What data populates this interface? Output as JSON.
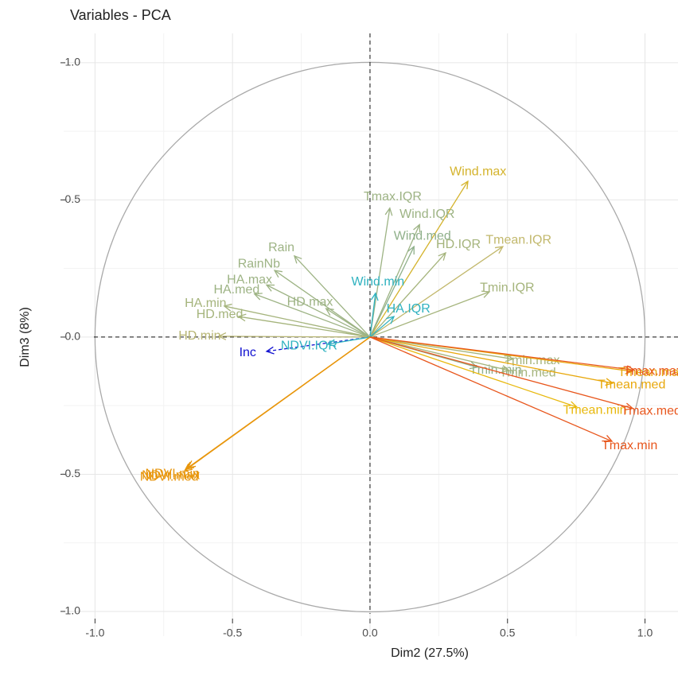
{
  "chart_data": {
    "type": "vector",
    "title": "Variables - PCA",
    "xlabel": "Dim2 (27.5%)",
    "ylabel": "Dim3 (8%)",
    "xlim": [
      -1.114,
      1.12
    ],
    "ylim": [
      -1.09,
      1.107
    ],
    "xticks": [
      {
        "value": -1,
        "label": "-1.0"
      },
      -0.5,
      {
        "value": 0,
        "label": "0.0"
      },
      0.5,
      {
        "value": 1,
        "label": "1.0"
      }
    ],
    "yticks": [
      {
        "value": -1,
        "label": "-1.0"
      },
      -0.5,
      {
        "value": 0,
        "label": "0.0"
      },
      0.5,
      {
        "value": 1,
        "label": "1.0"
      }
    ],
    "minor_ticks": [
      -0.75,
      -0.25,
      0.25,
      0.75
    ],
    "grid": true,
    "variables": [
      {
        "name": "Wind.max",
        "color": "#d4b32c",
        "x": 0.356,
        "y": 0.568
      },
      {
        "name": "Tmax.IQR",
        "color": "#9db384",
        "x": 0.072,
        "y": 0.47
      },
      {
        "name": "Wind.IQR",
        "color": "#9db384",
        "x": 0.18,
        "y": 0.41
      },
      {
        "name": "Wind.med",
        "color": "#8fb08a",
        "x": 0.16,
        "y": 0.33
      },
      {
        "name": "Tmean.IQR",
        "color": "#c2b86c",
        "x": 0.483,
        "y": 0.33
      },
      {
        "name": "HD.IQR",
        "color": "#a5b47c",
        "x": 0.275,
        "y": 0.307
      },
      {
        "name": "Wind.min",
        "color": "#2fb2c0",
        "x": 0.02,
        "y": 0.16
      },
      {
        "name": "Tmin.IQR",
        "color": "#a5b47c",
        "x": 0.434,
        "y": 0.165
      },
      {
        "name": "HA.IQR",
        "color": "#2fb2c0",
        "x": 0.087,
        "y": 0.075
      },
      {
        "name": "Rain",
        "color": "#9db384",
        "x": -0.275,
        "y": 0.296
      },
      {
        "name": "RainNb",
        "color": "#9db384",
        "x": -0.347,
        "y": 0.243
      },
      {
        "name": "HA.max",
        "color": "#9db384",
        "x": -0.376,
        "y": 0.19
      },
      {
        "name": "HA.med",
        "color": "#9db384",
        "x": -0.42,
        "y": 0.157
      },
      {
        "name": "HD.max",
        "color": "#9db384",
        "x": -0.16,
        "y": 0.104
      },
      {
        "name": "HA.min",
        "color": "#a5b47c",
        "x": -0.53,
        "y": 0.113
      },
      {
        "name": "HD.med",
        "color": "#a5b47c",
        "x": -0.478,
        "y": 0.075
      },
      {
        "name": "HD.min",
        "color": "#b8b674",
        "x": -0.55,
        "y": 0.003
      },
      {
        "name": "Inc",
        "color": "#1010d0",
        "x": -0.376,
        "y": -0.052,
        "linetype": "dashed"
      },
      {
        "name": "NDVI.IQR",
        "color": "#2fb2c0",
        "x": -0.153,
        "y": -0.026
      },
      {
        "name": "NDVI.max",
        "color": "#e8960c",
        "x": -0.668,
        "y": -0.481
      },
      {
        "name": "NDVI.med",
        "color": "#e8960c",
        "x": -0.674,
        "y": -0.487
      },
      {
        "name": "NDVI.min",
        "color": "#e8960c",
        "x": -0.662,
        "y": -0.476
      },
      {
        "name": "Tmin.max",
        "color": "#a5b47c",
        "x": 0.52,
        "y": -0.08
      },
      {
        "name": "Tmin.min",
        "color": "#8fb08a",
        "x": 0.39,
        "y": -0.11
      },
      {
        "name": "Tmin.med",
        "color": "#a5b47c",
        "x": 0.506,
        "y": -0.122
      },
      {
        "name": "Tmean.max",
        "color": "#e8a80c",
        "x": 0.955,
        "y": -0.125
      },
      {
        "name": "Tmean.med",
        "color": "#e8a80c",
        "x": 0.883,
        "y": -0.168
      },
      {
        "name": "Tmean.min",
        "color": "#e8b80c",
        "x": 0.752,
        "y": -0.255
      },
      {
        "name": "Tmax.max",
        "color": "#e8561c",
        "x": 0.96,
        "y": -0.12
      },
      {
        "name": "Tmax.med",
        "color": "#e8561c",
        "x": 0.955,
        "y": -0.26
      },
      {
        "name": "Tmax.min",
        "color": "#e8561c",
        "x": 0.88,
        "y": -0.38
      }
    ]
  }
}
